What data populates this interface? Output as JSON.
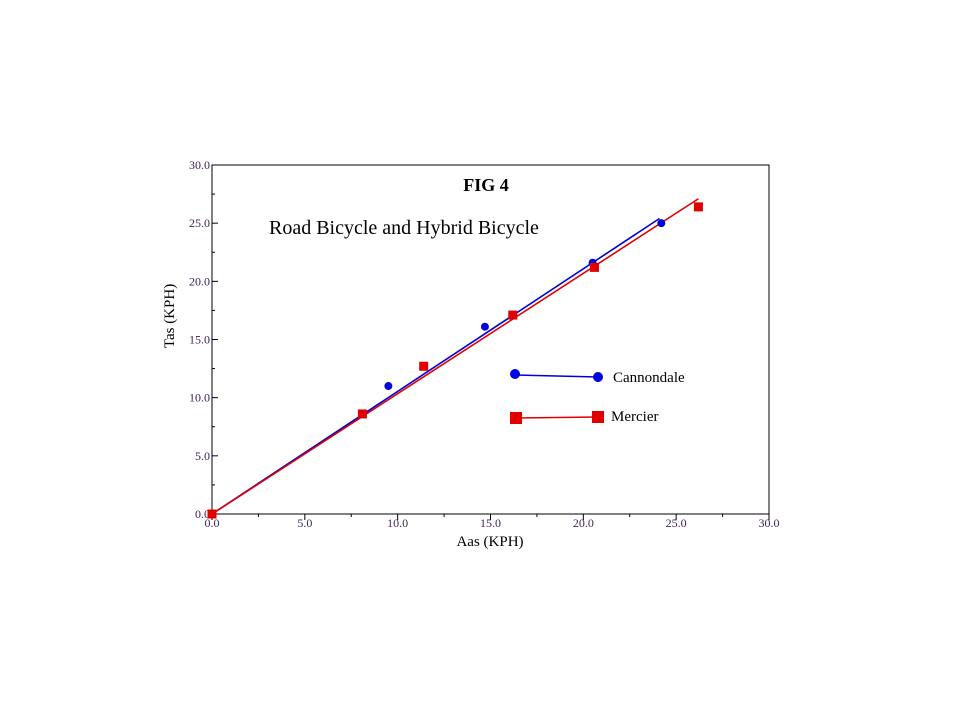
{
  "colors": {
    "cannondale": "#0000dd",
    "mercier": "#e00000",
    "axis": "#000000",
    "tick_text": "#3a1f5c"
  },
  "chart_data": {
    "type": "scatter",
    "title": "FIG 4",
    "subtitle": "Road Bicycle and Hybrid Bicycle",
    "xlabel": "Aas (KPH)",
    "ylabel": "Tas (KPH)",
    "xlim": [
      0,
      30
    ],
    "ylim": [
      0,
      30
    ],
    "x_ticks": [
      "0.0",
      "5.0",
      "10.0",
      "15.0",
      "20.0",
      "25.0",
      "30.0"
    ],
    "y_ticks": [
      "0.0",
      "5.0",
      "10.0",
      "15.0",
      "20.0",
      "25.0",
      "30.0"
    ],
    "grid": false,
    "legend_position": "right",
    "series": [
      {
        "name": "Cannondale",
        "marker": "circle",
        "color": "#0000dd",
        "points": [
          [
            0,
            0
          ],
          [
            9.5,
            11.0
          ],
          [
            14.7,
            16.1
          ],
          [
            20.5,
            21.6
          ],
          [
            24.2,
            25.0
          ]
        ],
        "fit_line": [
          [
            0,
            0
          ],
          [
            24.1,
            25.4
          ]
        ]
      },
      {
        "name": "Mercier",
        "marker": "square",
        "color": "#e00000",
        "points": [
          [
            0,
            0
          ],
          [
            8.1,
            8.6
          ],
          [
            11.4,
            12.7
          ],
          [
            16.2,
            17.1
          ],
          [
            20.6,
            21.2
          ],
          [
            26.2,
            26.4
          ]
        ],
        "fit_line": [
          [
            0,
            0
          ],
          [
            26.2,
            27.1
          ]
        ]
      }
    ]
  }
}
